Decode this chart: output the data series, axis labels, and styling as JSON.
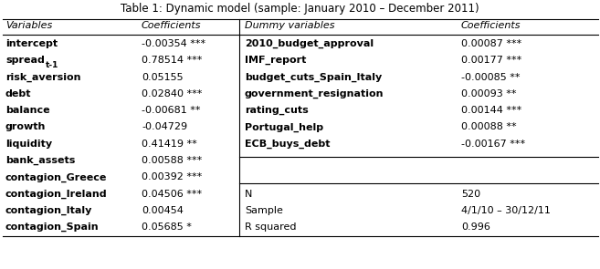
{
  "title": "Table 1: Dynamic model (sample: January 2010 – December 2011)",
  "header_left": [
    "Variables",
    "Coefficients"
  ],
  "header_right": [
    "Dummy variables",
    "Coefficients"
  ],
  "left_rows": [
    [
      "intercept",
      "-0.00354 ***"
    ],
    [
      "spread",
      "0.78514 ***"
    ],
    [
      "risk_aversion",
      "0.05155"
    ],
    [
      "debt",
      "0.02840 ***"
    ],
    [
      "balance",
      "-0.00681 **"
    ],
    [
      "growth",
      "-0.04729"
    ],
    [
      "liquidity",
      "0.41419 **"
    ],
    [
      "bank_assets",
      "0.00588 ***"
    ],
    [
      "contagion_Greece",
      "0.00392 ***"
    ],
    [
      "contagion_Ireland",
      "0.04506 ***"
    ],
    [
      "contagion_Italy",
      "0.00454"
    ],
    [
      "contagion_Spain",
      "0.05685 *"
    ]
  ],
  "right_rows": [
    [
      "2010_budget_approval",
      "0.00087 ***"
    ],
    [
      "IMF_report",
      "0.00177 ***"
    ],
    [
      "budget_cuts_Spain_Italy",
      "-0.00085 **"
    ],
    [
      "government_resignation",
      "0.00093 **"
    ],
    [
      "rating_cuts",
      "0.00144 ***"
    ],
    [
      "Portugal_help",
      "0.00088 **"
    ],
    [
      "ECB_buys_debt",
      "-0.00167 ***"
    ]
  ],
  "stats_rows": [
    [
      "N",
      "520"
    ],
    [
      "Sample",
      "4/1/10 – 30/12/11"
    ],
    [
      "R squared",
      "0.996"
    ]
  ],
  "fig_width": 6.57,
  "fig_height": 2.95,
  "dpi": 100,
  "background": "#ffffff",
  "font_size": 8.0,
  "title_font_size": 8.5
}
